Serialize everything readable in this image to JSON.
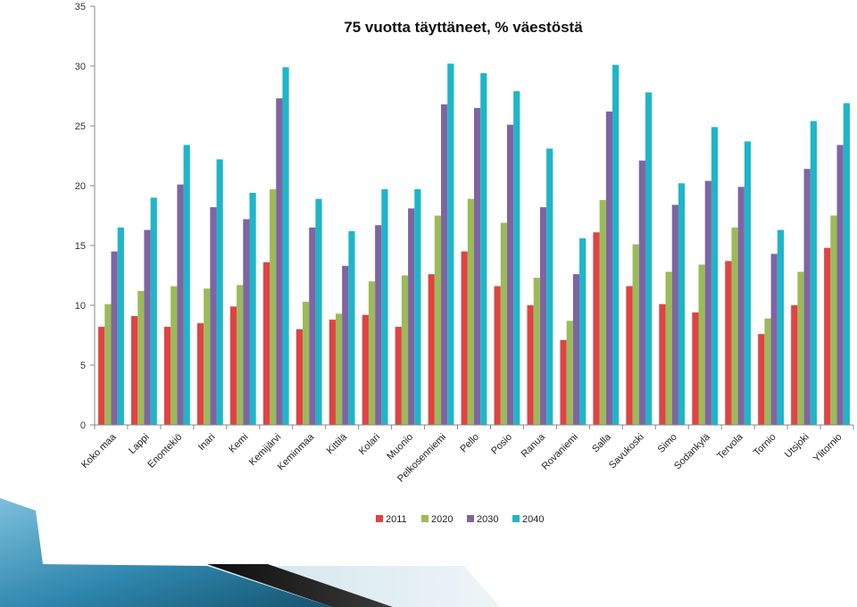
{
  "chart_data": {
    "type": "bar",
    "title": "75 vuotta täyttäneet, % väestöstä",
    "xlabel": "",
    "ylabel": "",
    "ylim": [
      0,
      35
    ],
    "yticks": [
      0,
      5,
      10,
      15,
      20,
      25,
      30,
      35
    ],
    "grid": false,
    "legend_position": "bottom",
    "categories": [
      "Koko maa",
      "Lappi",
      "Enontekiö",
      "Inari",
      "Kemi",
      "Kemijärvi",
      "Keminmaa",
      "Kittilä",
      "Kolari",
      "Muonio",
      "Pelkosenniemi",
      "Pello",
      "Posio",
      "Ranua",
      "Rovaniemi",
      "Salla",
      "Savukoski",
      "Simo",
      "Sodankylä",
      "Tervola",
      "Tornio",
      "Utsjoki",
      "Ylitornio"
    ],
    "series": [
      {
        "name": "2011",
        "color": "#e04343",
        "values": [
          8.2,
          9.1,
          8.2,
          8.5,
          9.9,
          13.6,
          8.0,
          8.8,
          9.2,
          8.2,
          12.6,
          14.5,
          11.6,
          10.0,
          7.1,
          16.1,
          11.6,
          10.1,
          9.4,
          13.7,
          7.6,
          10.0,
          14.8
        ]
      },
      {
        "name": "2020",
        "color": "#9bbb59",
        "values": [
          10.1,
          11.2,
          11.6,
          11.4,
          11.7,
          19.7,
          10.3,
          9.3,
          12.0,
          12.5,
          17.5,
          18.9,
          16.9,
          12.3,
          8.7,
          18.8,
          15.1,
          12.8,
          13.4,
          16.5,
          8.9,
          12.8,
          17.5
        ]
      },
      {
        "name": "2030",
        "color": "#8064a2",
        "values": [
          14.5,
          16.3,
          20.1,
          18.2,
          17.2,
          27.3,
          16.5,
          13.3,
          16.7,
          18.1,
          26.8,
          26.5,
          25.1,
          18.2,
          12.6,
          26.2,
          22.1,
          18.4,
          20.4,
          19.9,
          14.3,
          21.4,
          23.4
        ]
      },
      {
        "name": "2040",
        "color": "#1fb5c9",
        "values": [
          16.5,
          19.0,
          23.4,
          22.2,
          19.4,
          29.9,
          18.9,
          16.2,
          19.7,
          19.7,
          30.2,
          29.4,
          27.9,
          23.1,
          15.6,
          30.1,
          27.8,
          20.2,
          24.9,
          23.7,
          16.3,
          25.4,
          26.9
        ]
      }
    ]
  },
  "decor": {
    "slide_bg": "#ffffff",
    "axis_color": "#888888",
    "stripe_dark": "#1a1a1a",
    "stripe_light": "#d9e8ef",
    "wave_dark": "#1f6a8a",
    "wave_light": "#7cc0dc"
  }
}
